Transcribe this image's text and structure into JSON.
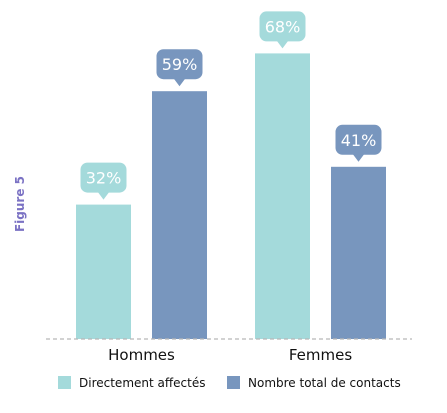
{
  "figure_label": "Figure 5",
  "colors": {
    "series_1": "#a4dadb",
    "series_2": "#7896be",
    "figure_label": "#7b72c4",
    "baseline": "#b8b8b8",
    "text": "#111111",
    "label_text": "#ffffff"
  },
  "chart_data": {
    "type": "bar",
    "categories": [
      "Hommes",
      "Femmes"
    ],
    "series": [
      {
        "name": "Directement affectés",
        "values": [
          32,
          68
        ]
      },
      {
        "name": "Nombre total de contacts",
        "values": [
          59,
          41
        ]
      }
    ],
    "value_labels": [
      [
        "32%",
        "68%"
      ],
      [
        "59%",
        "41%"
      ]
    ],
    "unit": "%",
    "ylim": [
      0,
      75
    ],
    "grid": false,
    "legend_position": "bottom"
  }
}
